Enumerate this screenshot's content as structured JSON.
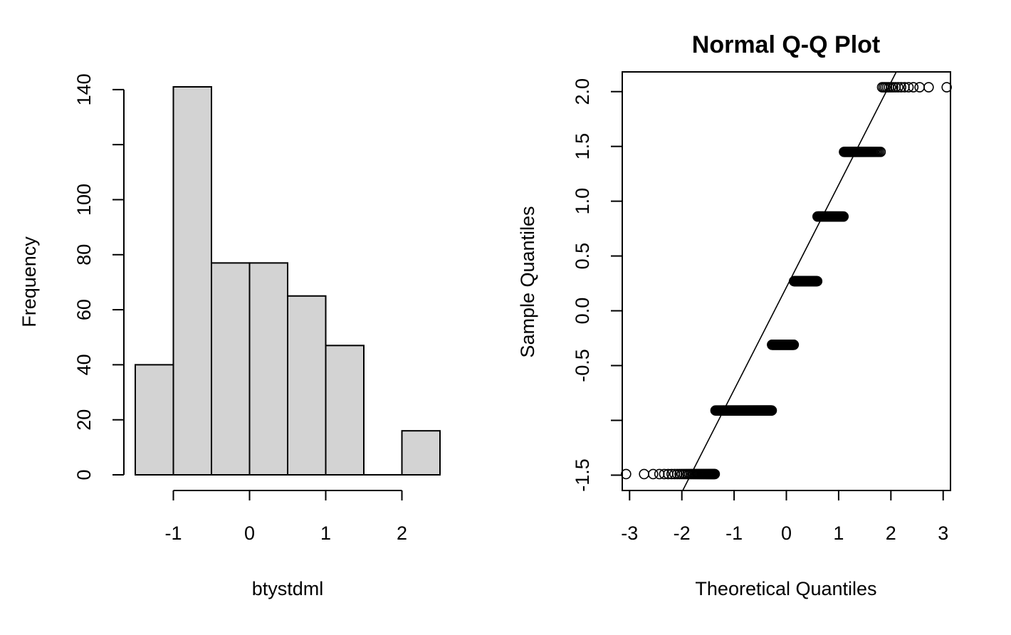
{
  "chart_data": [
    {
      "type": "bar",
      "title": "",
      "xlabel": "btystdml",
      "ylabel": "Frequency",
      "bin_edges": [
        -1.5,
        -1.0,
        -0.5,
        0.0,
        0.5,
        1.0,
        1.5,
        2.0,
        2.5
      ],
      "values": [
        40,
        141,
        77,
        77,
        65,
        47,
        0,
        16
      ],
      "xticks": [
        -1,
        0,
        1,
        2
      ],
      "xtick_labels": [
        "-1",
        "0",
        "1",
        "2"
      ],
      "yticks": [
        0,
        20,
        40,
        60,
        80,
        100,
        120,
        140
      ],
      "ytick_labels": [
        "0",
        "20",
        "40",
        "60",
        "80",
        "100",
        "",
        "140"
      ],
      "xlim": [
        -1.5,
        2.5
      ],
      "ylim": [
        0,
        141
      ],
      "bar_color": "#d3d3d3"
    },
    {
      "type": "scatter",
      "title": "Normal Q-Q Plot",
      "xlabel": "Theoretical Quantiles",
      "ylabel": "Sample Quantiles",
      "xticks": [
        -3,
        -2,
        -1,
        0,
        1,
        2,
        3
      ],
      "xtick_labels": [
        "-3",
        "-2",
        "-1",
        "0",
        "1",
        "2",
        "3"
      ],
      "yticks": [
        -1.5,
        -1.0,
        -0.5,
        0.0,
        0.5,
        1.0,
        1.5,
        2.0
      ],
      "ytick_labels": [
        "-1.5",
        "",
        "-0.5",
        "0.0",
        "0.5",
        "1.0",
        "1.5",
        "2.0"
      ],
      "xlim": [
        -3.14,
        3.14
      ],
      "ylim": [
        -1.64,
        2.18
      ],
      "sample_values": [
        -1.49,
        -0.91,
        -0.31,
        0.27,
        0.86,
        1.45,
        2.04
      ],
      "group_counts": [
        40,
        141,
        77,
        77,
        65,
        47,
        16
      ],
      "qq_line": {
        "intercept": 0.214,
        "slope": 0.935
      }
    }
  ]
}
